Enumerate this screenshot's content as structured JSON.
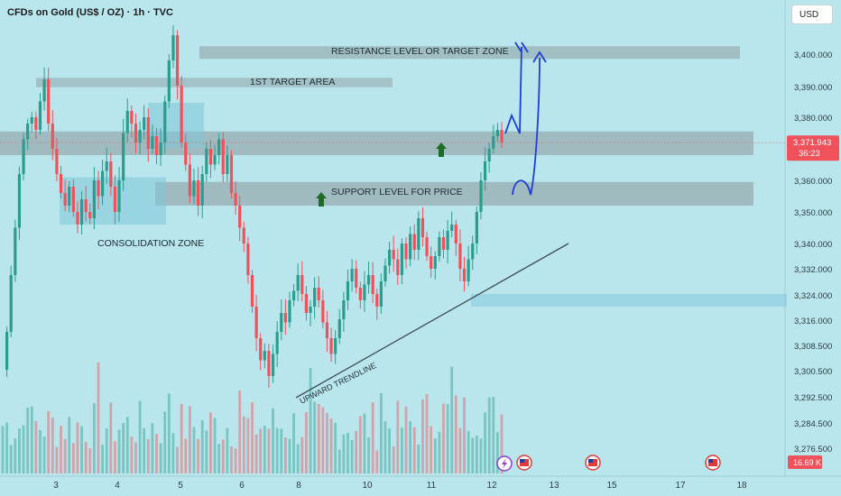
{
  "header": {
    "title": "CFDs on Gold (US$ / OZ) · 1h · TVC",
    "currency_button": "USD"
  },
  "colors": {
    "background": "#b8e6ec",
    "bull": "#2a9d8f",
    "bear": "#f0515a",
    "zone_gray": "#8e9ea3",
    "zone_blue": "#7fc6d8",
    "arrow_blue": "#1d3fd6",
    "arrow_green": "#1e6b2a",
    "price_tag": "#f0515a",
    "volume_tag": "#f0515a"
  },
  "annotations": {
    "resistance": "RESISTANCE LEVEL OR TARGET ZONE",
    "target1": "1ST TARGET AREA",
    "support": "SUPPORT LEVEL FOR PRICE",
    "consolidation": "CONSOLIDATION ZONE",
    "trendline": "UPWARD TRENDLINE"
  },
  "price_tag": {
    "price": "3,371.943",
    "countdown": "36:23"
  },
  "volume_tag": "16.69 K",
  "chart_data": {
    "type": "candlestick",
    "title": "CFDs on Gold (US$ / OZ) · 1h · TVC",
    "y_axis": {
      "ticks": [
        "3,400.000",
        "3,390.000",
        "3,380.000",
        "3,360.000",
        "3,350.000",
        "3,340.000",
        "3,332.000",
        "3,324.000",
        "3,316.000",
        "3,308.500",
        "3,300.500",
        "3,292.500",
        "3,284.500",
        "3,276.500"
      ],
      "range": [
        3272,
        3408
      ]
    },
    "x_axis": {
      "ticks": [
        "3",
        "4",
        "5",
        "6",
        "8",
        "10",
        "11",
        "12",
        "13",
        "15",
        "17",
        "18"
      ]
    },
    "last_price": 3371.943,
    "zones": [
      {
        "name": "RESISTANCE LEVEL OR TARGET ZONE",
        "low": 3398.5,
        "high": 3402.5
      },
      {
        "name": "1ST TARGET AREA",
        "low": 3389.5,
        "high": 3392.5
      },
      {
        "name": "upper consolidation band",
        "low": 3368,
        "high": 3375.5
      },
      {
        "name": "SUPPORT LEVEL FOR PRICE",
        "low": 3352,
        "high": 3359.5
      },
      {
        "name": "CONSOLIDATION ZONE",
        "low": 3346,
        "high": 3361
      },
      {
        "name": "demand zone",
        "low": 3320,
        "high": 3324
      }
    ],
    "price_path": [
      3300,
      3312,
      3330,
      3345,
      3362,
      3373,
      3378,
      3380,
      3376,
      3385,
      3392,
      3378,
      3370,
      3362,
      3356,
      3352,
      3358,
      3350,
      3346,
      3354,
      3350,
      3348,
      3360,
      3355,
      3363,
      3366,
      3358,
      3350,
      3360,
      3375,
      3382,
      3378,
      3372,
      3376,
      3380,
      3370,
      3374,
      3368,
      3372,
      3385,
      3398,
      3406,
      3390,
      3372,
      3365,
      3355,
      3360,
      3352,
      3362,
      3370,
      3365,
      3368,
      3373,
      3362,
      3368,
      3356,
      3352,
      3345,
      3340,
      3330,
      3320,
      3310,
      3303,
      3306,
      3298,
      3305,
      3312,
      3318,
      3315,
      3322,
      3325,
      3330,
      3324,
      3318,
      3320,
      3326,
      3322,
      3315,
      3310,
      3305,
      3310,
      3316,
      3322,
      3328,
      3332,
      3326,
      3322,
      3327,
      3330,
      3324,
      3320,
      3328,
      3333,
      3338,
      3335,
      3330,
      3340,
      3335,
      3343,
      3338,
      3348,
      3342,
      3336,
      3332,
      3336,
      3342,
      3338,
      3344,
      3346,
      3340,
      3332,
      3328,
      3335,
      3340,
      3350,
      3360,
      3366,
      3370,
      3374,
      3376,
      3372
    ],
    "volume_range": [
      0,
      100
    ]
  }
}
